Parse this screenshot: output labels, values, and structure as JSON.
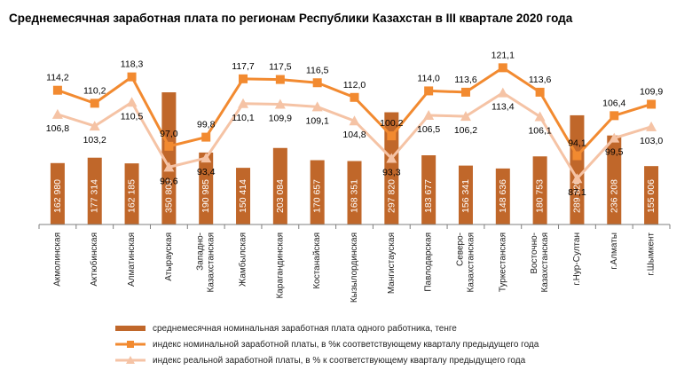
{
  "title": "Среднемесячная заработная  плата по регионам Республики Казахстан в III квартале 2020 года",
  "colors": {
    "bars": "#c0672a",
    "nominal": "#f28a30",
    "real": "#f5c3a5",
    "bar_label": "#ffffff"
  },
  "chart_data": {
    "type": "bar",
    "categories": [
      "Акмолинская",
      "Актюбинская",
      "Алматинская",
      "Атырауская",
      "Западно-Казахстанская",
      "Жамбылская",
      "Карагандинская",
      "Костанайская",
      "Кызылординская",
      "Мангистауская",
      "Павлодарская",
      "Северо-Казахстанская",
      "Туркестанская",
      "Восточно-Казахстанская",
      "г.Нур-Султан",
      "г.Алматы",
      "г.Шымкент"
    ],
    "category_labels": [
      [
        "Акмолинская"
      ],
      [
        "Актюбинская"
      ],
      [
        "Алматинская"
      ],
      [
        "Атырауская"
      ],
      [
        "Западно-",
        "Казахстанская"
      ],
      [
        "Жамбылская"
      ],
      [
        "Карагандинская"
      ],
      [
        "Костанайская"
      ],
      [
        "Кызылординская"
      ],
      [
        "Мангистауская"
      ],
      [
        "Павлодарская"
      ],
      [
        "Северо-",
        "Казахстанская"
      ],
      [
        "Туркестанская"
      ],
      [
        "Восточно-",
        "Казахстанская"
      ],
      [
        "г.Нур-Султан"
      ],
      [
        "г.Алматы"
      ],
      [
        "г.Шымкент"
      ]
    ],
    "series": [
      {
        "name": "среднемесячная номинальная заработная плата одного работника, тенге",
        "type": "bar",
        "values": [
          162980,
          177314,
          162185,
          350800,
          190985,
          150414,
          203084,
          170657,
          168351,
          297820,
          183677,
          156341,
          148636,
          180753,
          289820,
          236208,
          155006
        ],
        "labels": [
          "162 980",
          "177 314",
          "162 185",
          "350 800",
          "190 985",
          "150 414",
          "203 084",
          "170 657",
          "168 351",
          "297 820",
          "183 677",
          "156 341",
          "148 636",
          "180 753",
          "289 820",
          "236 208",
          "155 006"
        ]
      },
      {
        "name": "индекс номинальной заработной платы, в %к соответствующему кварталу предыдущего года",
        "type": "line",
        "marker": "square",
        "values": [
          114.2,
          110.2,
          118.3,
          97.0,
          99.8,
          117.7,
          117.5,
          116.5,
          112.0,
          100.2,
          114.0,
          113.6,
          121.1,
          113.6,
          94.1,
          106.4,
          109.9
        ],
        "labels": [
          "114,2",
          "110,2",
          "118,3",
          "97,0",
          "99,8",
          "117,7",
          "117,5",
          "116,5",
          "112,0",
          "100,2",
          "114,0",
          "113,6",
          "121,1",
          "113,6",
          "94,1",
          "106,4",
          "109,9"
        ]
      },
      {
        "name": "индекс реальной заработной платы, в % к соответствующему кварталу предыдущего года",
        "type": "line",
        "marker": "triangle",
        "values": [
          106.8,
          103.2,
          110.5,
          90.6,
          93.4,
          110.1,
          109.9,
          109.1,
          104.8,
          93.3,
          106.5,
          106.2,
          113.4,
          106.1,
          87.1,
          99.5,
          103.0
        ],
        "labels": [
          "106,8",
          "103,2",
          "110,5",
          "90,6",
          "93,4",
          "110,1",
          "109,9",
          "109,1",
          "104,8",
          "93,3",
          "106,5",
          "106,2",
          "113,4",
          "106,1",
          "87,1",
          "99,5",
          "103,0"
        ]
      }
    ],
    "bar_ylim": [
      0,
      365000
    ],
    "line_ylim": [
      73,
      131
    ],
    "grid": false,
    "legend_position": "bottom"
  }
}
